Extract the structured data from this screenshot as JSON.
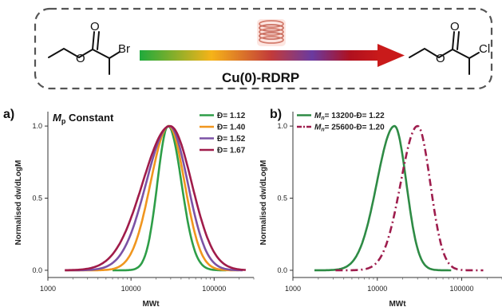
{
  "scheme": {
    "reactant_atom": "Br",
    "product_atom": "Cl",
    "reaction_label": "Cu(0)-RDRP",
    "gradient_colors": [
      "#1faa3c",
      "#f6b318",
      "#c23a3a",
      "#6a3aa0",
      "#b0101e",
      "#c91a1a"
    ],
    "coil_icon": "copper-coil-icon"
  },
  "chart_data": [
    {
      "type": "line",
      "panel_label": "a)",
      "title": "Mp Constant",
      "title_main": "M",
      "title_sub": "p",
      "title_rest": " Constant",
      "xlabel": "MWt",
      "ylabel": "Normalised dw/dLogM",
      "x_scale": "log",
      "xlim": [
        1000,
        300000
      ],
      "ylim": [
        -0.05,
        1.1
      ],
      "xticks": [
        "1000",
        "10000",
        "100000"
      ],
      "yticks": [
        "0.0",
        "0.5",
        "1.0"
      ],
      "legend_position": "top-right",
      "grid": false,
      "series": [
        {
          "name": "Đ= 1.12",
          "color": "#2e9e48",
          "dash": "solid",
          "peak": 28000,
          "sigma_left": 0.13,
          "sigma_right": 0.16,
          "xmin": 6000,
          "xmax": 140000
        },
        {
          "name": "Đ= 1.40",
          "color": "#f0961e",
          "dash": "solid",
          "peak": 28500,
          "sigma_left": 0.22,
          "sigma_right": 0.19,
          "xmin": 1600,
          "xmax": 200000
        },
        {
          "name": "Đ= 1.52",
          "color": "#7b52a5",
          "dash": "solid",
          "peak": 29000,
          "sigma_left": 0.28,
          "sigma_right": 0.22,
          "xmin": 1600,
          "xmax": 220000
        },
        {
          "name": "Đ= 1.67",
          "color": "#a01c4a",
          "dash": "solid",
          "peak": 29500,
          "sigma_left": 0.33,
          "sigma_right": 0.26,
          "xmin": 1600,
          "xmax": 240000
        }
      ]
    },
    {
      "type": "line",
      "panel_label": "b)",
      "title": "",
      "xlabel": "MWt",
      "ylabel": "Normalised dw/dLogM",
      "x_scale": "log",
      "xlim": [
        1000,
        300000
      ],
      "ylim": [
        -0.05,
        1.1
      ],
      "xticks": [
        "1000",
        "10000",
        "100000"
      ],
      "yticks": [
        "0.0",
        "0.5",
        "1.0"
      ],
      "legend_position": "top-left",
      "grid": false,
      "series": [
        {
          "name": "Mn= 13200-Đ= 1.22",
          "name_main": "M",
          "name_sub": "n",
          "name_rest": "= 13200-Đ= 1.22",
          "color": "#2e8b45",
          "dash": "solid",
          "peak": 16000,
          "sigma_left": 0.21,
          "sigma_right": 0.14,
          "xmin": 1800,
          "xmax": 75000
        },
        {
          "name": "Mn= 25600-Đ= 1.20",
          "name_main": "M",
          "name_sub": "n",
          "name_rest": "= 25600-Đ= 1.20",
          "color": "#9e1d4d",
          "dash": "dashdot",
          "peak": 30000,
          "sigma_left": 0.2,
          "sigma_right": 0.15,
          "xmin": 3200,
          "xmax": 180000
        }
      ]
    }
  ]
}
